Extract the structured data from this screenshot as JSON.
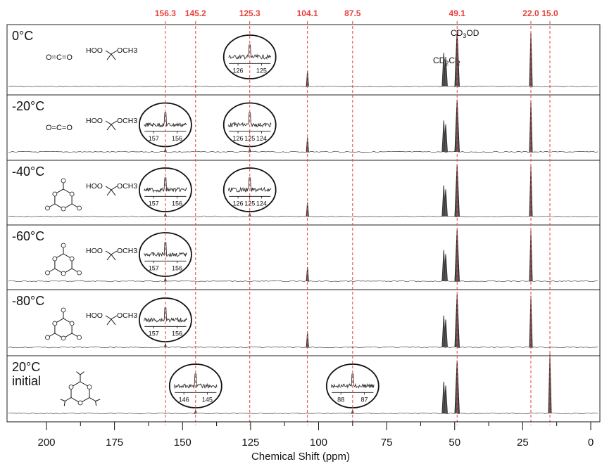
{
  "chart_data": {
    "type": "line",
    "title": "",
    "xlabel": "Chemical Shift (ppm)",
    "ylabel": "",
    "xlim": [
      214,
      0
    ],
    "x_reversed": true,
    "x_ticks": [
      200,
      175,
      150,
      125,
      100,
      75,
      50,
      25,
      0
    ],
    "x_tick_labels": [
      "200",
      "175",
      "150",
      "125",
      "100",
      "75",
      "50",
      "25",
      "0"
    ],
    "reference_lines": [
      156.3,
      145.2,
      125.3,
      104.1,
      87.5,
      49.1,
      22.0,
      15.0
    ],
    "reference_labels": [
      "156.3",
      "145.2",
      "125.3",
      "104.1",
      "87.5",
      "49.1",
      "22.0",
      "15.0"
    ],
    "reference_line_color": "#e8413a",
    "solvent_labels": {
      "cd3od": "CD3OD",
      "cd2cl2": "CD2Cl2"
    },
    "structure_text": {
      "o_c_o": "O=C=O",
      "hoo": "HOO",
      "och3": "OCH3"
    },
    "panels": [
      {
        "temperature": "0°C",
        "molecules": [
          "O=C=O",
          "HOO-C(CH3)2-OCH3"
        ],
        "peaks": [
          104.1,
          54.0,
          53.3,
          49.1,
          22.0
        ],
        "insets": [
          {
            "center": 125.3,
            "tick_labels": [
              "126",
              "125"
            ]
          }
        ]
      },
      {
        "temperature": "-20°C",
        "molecules": [
          "O=C=O",
          "HOO-C(CH3)2-OCH3"
        ],
        "peaks": [
          156.3,
          125.3,
          104.1,
          54.0,
          53.3,
          49.1,
          22.0
        ],
        "insets": [
          {
            "center": 156.3,
            "tick_labels": [
              "157",
              "156"
            ]
          },
          {
            "center": 125.3,
            "tick_labels": [
              "126",
              "125",
              "124"
            ]
          }
        ]
      },
      {
        "temperature": "-40°C",
        "molecules": [
          "cyclic trimer",
          "HOO-C(CH3)2-OCH3"
        ],
        "peaks": [
          156.3,
          125.3,
          104.1,
          54.0,
          53.3,
          49.1,
          22.0
        ],
        "insets": [
          {
            "center": 156.3,
            "tick_labels": [
              "157",
              "156"
            ]
          },
          {
            "center": 125.3,
            "tick_labels": [
              "126",
              "125",
              "124"
            ]
          }
        ]
      },
      {
        "temperature": "-60°C",
        "molecules": [
          "cyclic trimer",
          "HOO-C(CH3)2-OCH3"
        ],
        "peaks": [
          156.3,
          104.1,
          54.0,
          53.3,
          49.1,
          22.0
        ],
        "insets": [
          {
            "center": 156.3,
            "tick_labels": [
              "157",
              "156"
            ]
          }
        ]
      },
      {
        "temperature": "-80°C",
        "molecules": [
          "cyclic trimer",
          "HOO-C(CH3)2-OCH3"
        ],
        "peaks": [
          156.3,
          104.1,
          54.0,
          53.3,
          49.1,
          22.0
        ],
        "insets": [
          {
            "center": 156.3,
            "tick_labels": [
              "157",
              "156"
            ]
          }
        ]
      },
      {
        "temperature": "20°C\ninitial",
        "molecules": [
          "trioxane derivative"
        ],
        "peaks": [
          145.2,
          87.5,
          54.0,
          53.3,
          49.1,
          15.0
        ],
        "insets": [
          {
            "center": 145.2,
            "tick_labels": [
              "146",
              "145"
            ]
          },
          {
            "center": 87.5,
            "tick_labels": [
              "88",
              "87"
            ]
          }
        ]
      }
    ],
    "grid": false,
    "legend": "none"
  }
}
